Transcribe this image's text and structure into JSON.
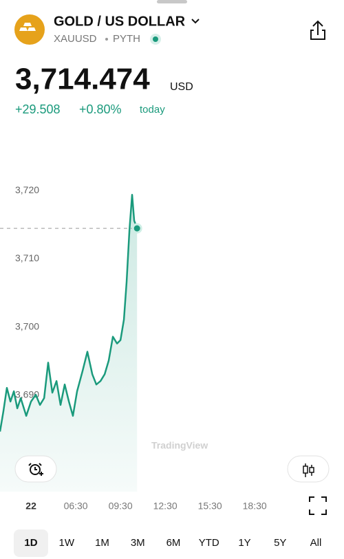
{
  "header": {
    "title": "GOLD / US DOLLAR",
    "symbol": "XAUUSD",
    "source": "PYTH"
  },
  "price": {
    "value": "3,714.474",
    "currency": "USD",
    "change": "+29.508",
    "change_percent": "+0.80%",
    "period": "today"
  },
  "chart_data": {
    "type": "line",
    "x": [
      1.42,
      1.65,
      1.88,
      2.12,
      2.35,
      2.58,
      2.81,
      3.18,
      3.5,
      3.82,
      4.1,
      4.38,
      4.65,
      4.93,
      5.21,
      5.48,
      5.76,
      6.04,
      6.31,
      6.59,
      6.96,
      7.28,
      7.61,
      7.88,
      8.16,
      8.44,
      8.71,
      8.99,
      9.27,
      9.5,
      9.73,
      9.91,
      10.1,
      10.28,
      10.42,
      10.61
    ],
    "series": [
      {
        "color": "#1a9a7c",
        "values": [
          3684.7,
          3687.7,
          3691.1,
          3689.1,
          3690.6,
          3688.1,
          3689.6,
          3687.0,
          3689.1,
          3690.1,
          3688.6,
          3689.6,
          3694.8,
          3690.4,
          3692.1,
          3688.6,
          3691.6,
          3689.1,
          3687.0,
          3690.6,
          3693.6,
          3696.4,
          3693.1,
          3691.6,
          3692.1,
          3693.1,
          3695.1,
          3698.6,
          3697.6,
          3698.1,
          3701.1,
          3706.6,
          3714.2,
          3719.4,
          3715.6,
          3714.5
        ]
      }
    ],
    "last_value": 3714.474,
    "xlim": [
      1.42,
      24.49
    ],
    "ylim": [
      3675.9,
      3729.8
    ],
    "yticks": [
      {
        "value": 3690,
        "label": "3,690"
      },
      {
        "value": 3700,
        "label": "3,700"
      },
      {
        "value": 3710,
        "label": "3,710"
      },
      {
        "value": 3720,
        "label": "3,720"
      }
    ],
    "xticks": [
      {
        "value": 3.5,
        "label": "22"
      },
      {
        "value": 6.5,
        "label": "06:30"
      },
      {
        "value": 9.5,
        "label": "09:30"
      },
      {
        "value": 12.5,
        "label": "12:30"
      },
      {
        "value": 15.5,
        "label": "15:30"
      },
      {
        "value": 18.5,
        "label": "18:30"
      }
    ],
    "watermark": "TradingView"
  },
  "range_tabs": [
    "1D",
    "1W",
    "1M",
    "3M",
    "6M",
    "YTD",
    "1Y",
    "5Y",
    "All"
  ]
}
